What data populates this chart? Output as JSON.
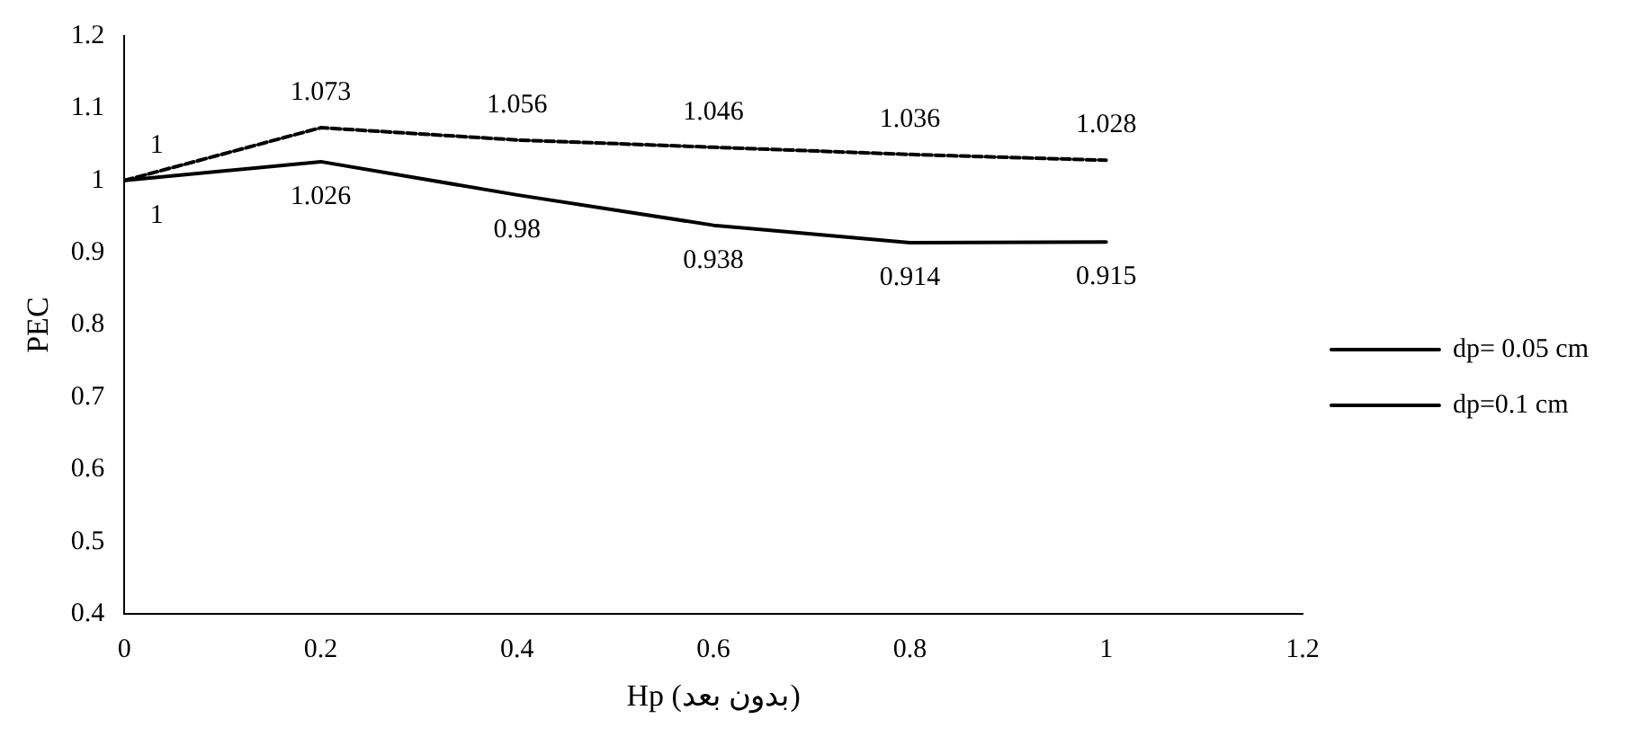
{
  "chart_data": {
    "type": "line",
    "xlabel": "Hp (بدون بعد)",
    "ylabel": "PEC",
    "x": [
      0,
      0.2,
      0.4,
      0.6,
      0.8,
      1
    ],
    "series": [
      {
        "name": "dp= 0.05 cm",
        "color": "#000000",
        "values": [
          1,
          1.026,
          0.98,
          0.938,
          0.914,
          0.915
        ],
        "line_style": "solid"
      },
      {
        "name": "dp=0.1 cm",
        "color": "#000000",
        "values": [
          1,
          1.073,
          1.056,
          1.046,
          1.036,
          1.028
        ],
        "line_style": "dashed"
      }
    ],
    "xlim": [
      0,
      1.2
    ],
    "xticks": [
      0,
      0.2,
      0.4,
      0.6,
      0.8,
      1,
      1.2
    ],
    "ylim": [
      0.4,
      1.2
    ],
    "yticks": [
      0.4,
      0.5,
      0.6,
      0.7,
      0.8,
      0.9,
      1,
      1.1,
      1.2
    ],
    "grid": false,
    "legend": "right",
    "marker": "none",
    "data_labels": true
  }
}
